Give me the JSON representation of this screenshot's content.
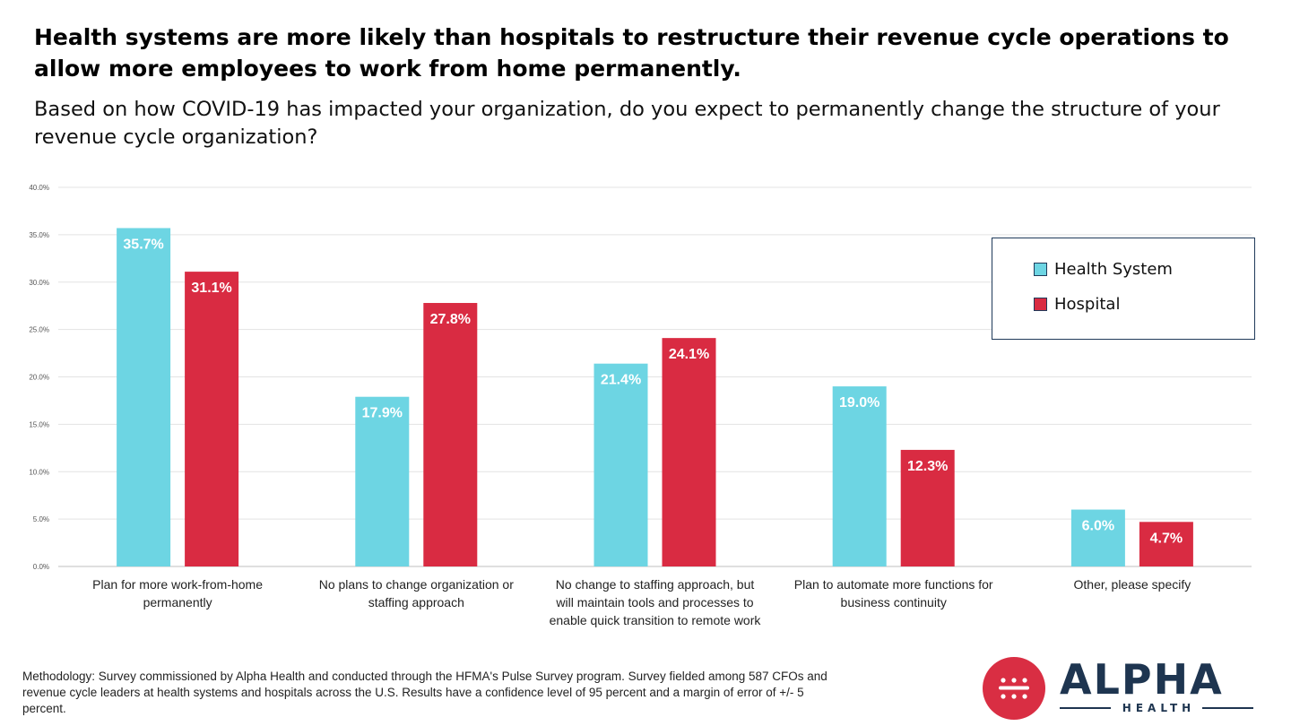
{
  "header": {
    "title": "Health systems are more likely than hospitals to restructure their revenue cycle operations to allow more employees to work from home permanently.",
    "subtitle": "Based on how COVID-19 has impacted your organization, do you expect to permanently change the structure of your revenue cycle organization?"
  },
  "chart_data": {
    "type": "bar",
    "title": "Health systems are more likely than hospitals to restructure their revenue cycle operations to allow more employees to work from home permanently.",
    "subtitle": "Based on how COVID-19 has impacted your organization, do you expect to permanently change the structure of your revenue cycle organization?",
    "categories": [
      [
        "Plan for more work-from-home",
        "permanently"
      ],
      [
        "No plans to change organization or",
        "staffing approach"
      ],
      [
        "No change to staffing approach, but",
        "will maintain tools  and processes to",
        "enable quick transition to remote work"
      ],
      [
        "Plan to automate more functions for",
        "business continuity"
      ],
      [
        "Other, please specify"
      ]
    ],
    "series": [
      {
        "name": "Health System",
        "color": "#6dd5e3",
        "values": [
          35.7,
          17.9,
          21.4,
          19.0,
          6.0
        ],
        "labels": [
          "35.7%",
          "17.9%",
          "21.4%",
          "19.0%",
          "6.0%"
        ]
      },
      {
        "name": "Hospital",
        "color": "#d92b42",
        "values": [
          31.1,
          27.8,
          24.1,
          12.3,
          4.7
        ],
        "labels": [
          "31.1%",
          "27.8%",
          "24.1%",
          "12.3%",
          "4.7%"
        ]
      }
    ],
    "ylim": [
      0,
      40
    ],
    "yticks": [
      "0.0%",
      "5.0%",
      "10.0%",
      "15.0%",
      "20.0%",
      "25.0%",
      "30.0%",
      "35.0%",
      "40.0%"
    ],
    "grid": true,
    "legend": "top-right"
  },
  "legend": {
    "items": [
      {
        "label": "Health System",
        "color": "#6dd5e3"
      },
      {
        "label": "Hospital",
        "color": "#d92b42"
      }
    ]
  },
  "footer": {
    "methodology": "Methodology: Survey commissioned by Alpha Health and conducted through the HFMA's Pulse Survey program. Survey fielded among 587 CFOs and revenue cycle leaders at health systems and hospitals across the U.S. Results have a confidence level of 95 percent and a margin of error of +/- 5 percent."
  },
  "logo": {
    "word": "ALPHA",
    "sub": "HEALTH",
    "color": "#1e3550",
    "accent": "#d92e43"
  }
}
